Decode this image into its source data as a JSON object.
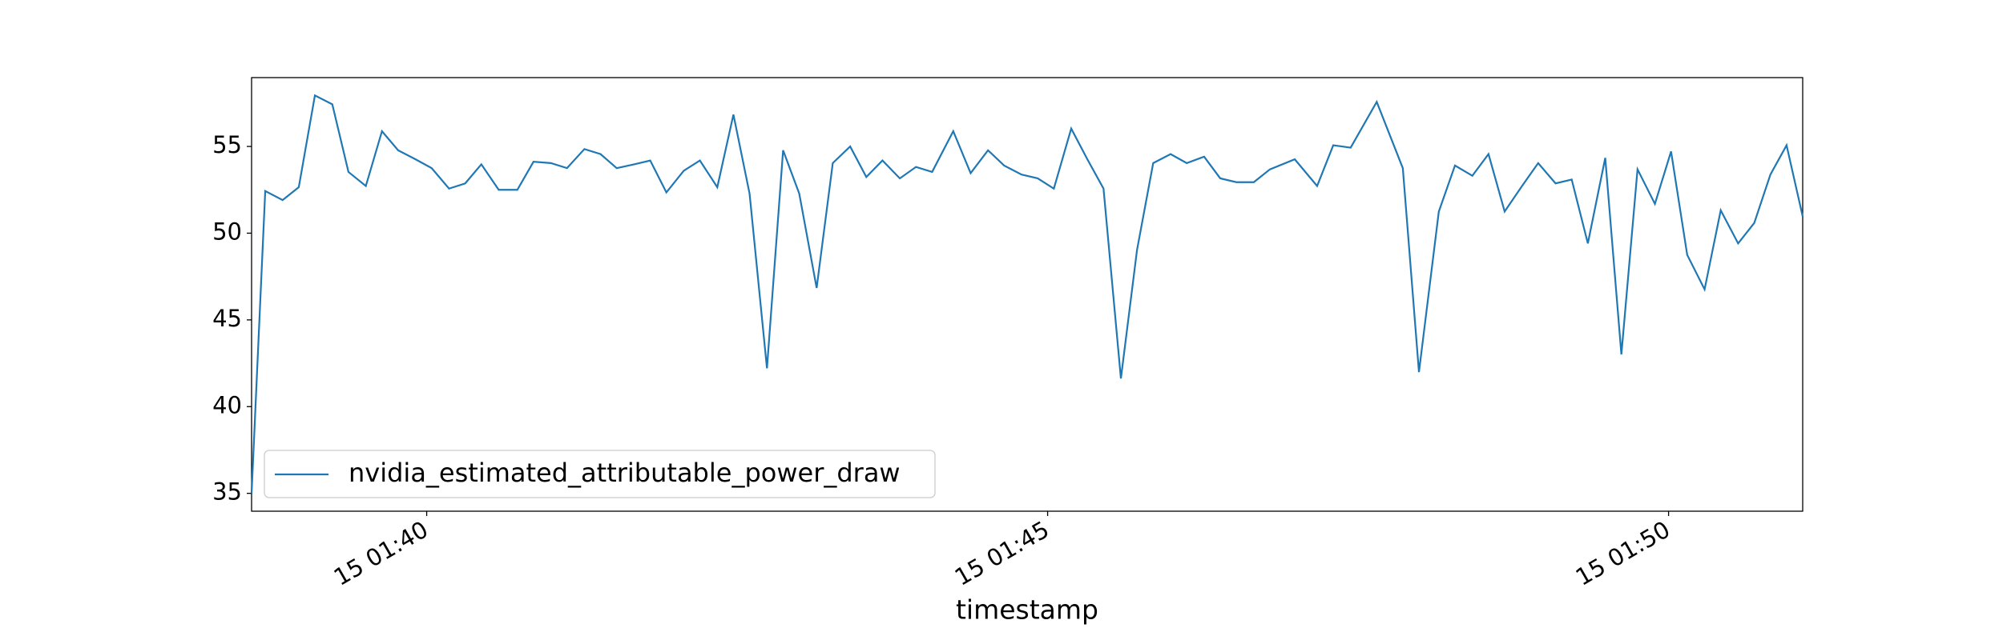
{
  "chart_data": {
    "type": "line",
    "x_label": "timestamp",
    "x": [
      38.59,
      38.7,
      38.84,
      38.97,
      39.1,
      39.24,
      39.37,
      39.51,
      39.64,
      39.77,
      39.91,
      40.04,
      40.18,
      40.31,
      40.44,
      40.58,
      40.73,
      40.86,
      41.0,
      41.13,
      41.27,
      41.4,
      41.53,
      41.67,
      41.8,
      41.93,
      42.07,
      42.2,
      42.34,
      42.47,
      42.6,
      42.74,
      42.87,
      43.0,
      43.14,
      43.27,
      43.41,
      43.54,
      43.67,
      43.81,
      43.94,
      44.07,
      44.24,
      44.38,
      44.52,
      44.65,
      44.79,
      44.92,
      45.05,
      45.19,
      45.32,
      45.45,
      45.59,
      45.72,
      45.85,
      45.99,
      46.12,
      46.26,
      46.39,
      46.52,
      46.66,
      46.79,
      46.99,
      47.17,
      47.3,
      47.44,
      47.65,
      47.86,
      47.99,
      48.15,
      48.28,
      48.42,
      48.55,
      48.68,
      48.82,
      48.95,
      49.09,
      49.22,
      49.35,
      49.49,
      49.62,
      49.75,
      49.89,
      50.02,
      50.15,
      50.29,
      50.42,
      50.56,
      50.69,
      50.82,
      50.95,
      51.08
    ],
    "series": [
      {
        "name": "nvidia_estimated_attributable_power_draw",
        "color": "#1f77b4",
        "values": [
          35.0,
          52.43,
          51.91,
          52.65,
          57.94,
          57.43,
          53.53,
          52.72,
          55.88,
          54.78,
          54.26,
          53.75,
          52.57,
          52.87,
          53.97,
          52.5,
          52.5,
          54.12,
          54.04,
          53.75,
          54.85,
          54.56,
          53.75,
          53.97,
          54.19,
          52.35,
          53.6,
          54.19,
          52.65,
          56.84,
          52.28,
          42.21,
          54.78,
          52.28,
          46.84,
          54.04,
          55.0,
          53.24,
          54.19,
          53.16,
          53.82,
          53.53,
          55.88,
          53.46,
          54.78,
          53.9,
          53.38,
          53.16,
          52.57,
          56.03,
          54.26,
          52.57,
          41.62,
          49.04,
          54.04,
          54.56,
          54.04,
          54.41,
          53.16,
          52.94,
          52.94,
          53.68,
          54.26,
          52.72,
          55.07,
          54.93,
          57.57,
          53.75,
          41.99,
          51.25,
          53.9,
          53.31,
          54.56,
          51.25,
          52.72,
          54.04,
          52.87,
          53.09,
          49.41,
          54.34,
          43.01,
          53.68,
          51.69,
          54.71,
          48.75,
          46.76,
          51.32,
          49.41,
          50.59,
          53.38,
          55.07,
          50.96
        ]
      }
    ],
    "xlim": [
      38.59,
      51.08
    ],
    "xticks": [
      {
        "value": 40,
        "label": "15 01:40"
      },
      {
        "value": 45,
        "label": "15 01:45"
      },
      {
        "value": 50,
        "label": "15 01:50"
      }
    ],
    "ylim": [
      33.97,
      58.97
    ],
    "yticks": [
      35,
      40,
      45,
      50,
      55
    ],
    "legend": "lower left"
  }
}
